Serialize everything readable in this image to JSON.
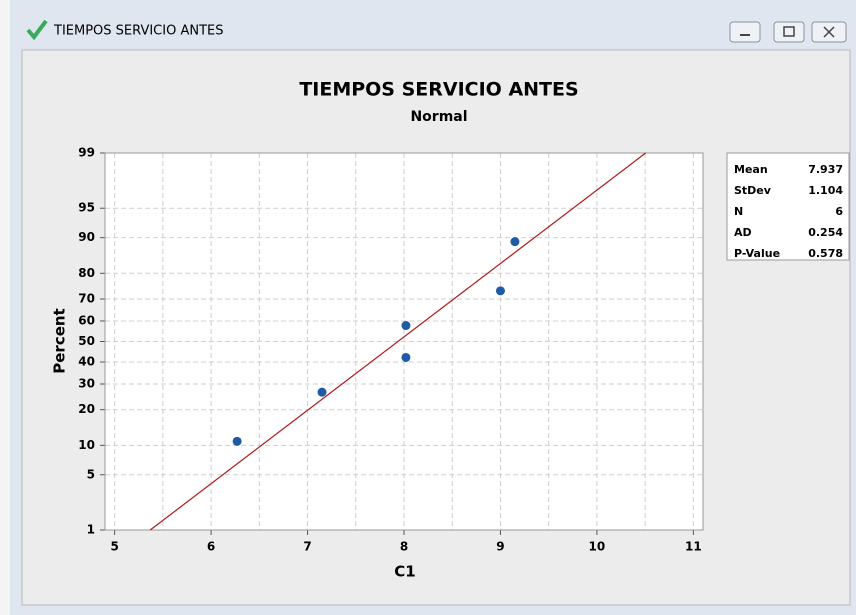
{
  "window_title": "TIEMPOS SERVICIO ANTES",
  "chart_data": {
    "type": "probability",
    "title": "TIEMPOS SERVICIO ANTES",
    "subtitle": "Normal",
    "xlabel": "C1",
    "ylabel": "Percent",
    "x": [
      6.27,
      7.15,
      8.02,
      8.02,
      9.0,
      9.15
    ],
    "values": [
      10.9,
      26.6,
      42.2,
      57.8,
      73.4,
      89.1
    ],
    "points_color": "#1f5aa6",
    "line_color": "#b01818",
    "xlim": [
      4.9,
      11.1
    ],
    "xticks": [
      5,
      6,
      7,
      8,
      9,
      10,
      11
    ],
    "xminorticks": [
      5.5,
      6.5,
      7.5,
      8.5,
      9.5,
      10.5
    ],
    "ylim": [
      1,
      99
    ],
    "yticks": [
      1,
      5,
      10,
      20,
      30,
      40,
      50,
      60,
      70,
      80,
      90,
      95,
      99
    ],
    "y_scale": "normal-probability",
    "grid": true,
    "stats": [
      {
        "label": "Mean",
        "value": 7.937
      },
      {
        "label": "StDev",
        "value": 1.104
      },
      {
        "label": "N",
        "value": 6
      },
      {
        "label": "AD",
        "value": 0.254
      },
      {
        "label": "P-Value",
        "value": 0.578
      }
    ]
  }
}
